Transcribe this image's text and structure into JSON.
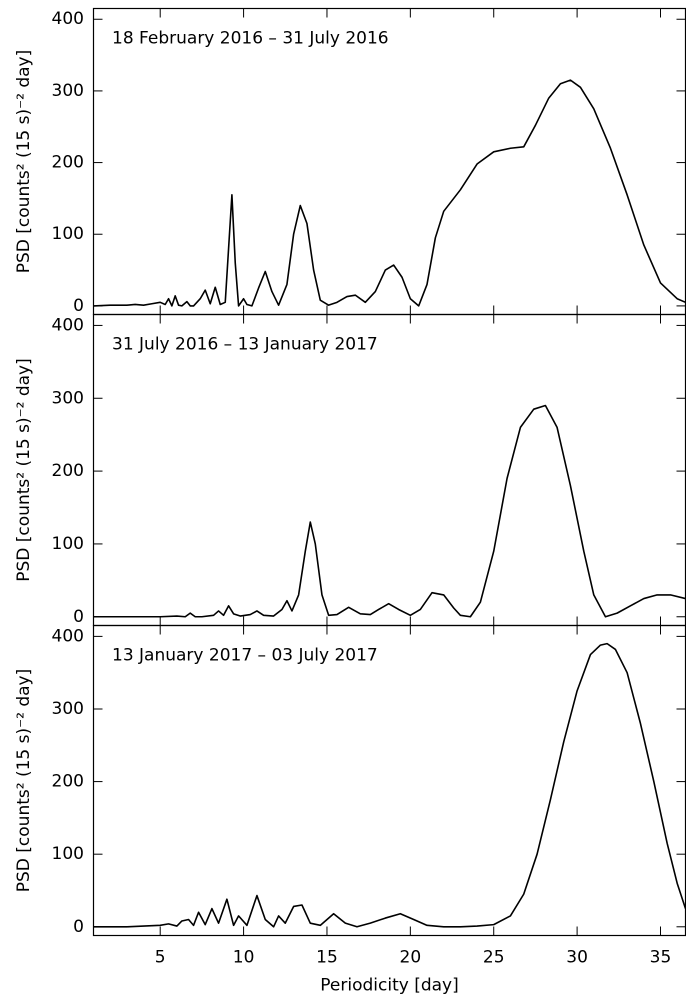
{
  "chart_data": [
    {
      "type": "line",
      "title": "18 February 2016 – 31 July 2016",
      "ylabel": "PSD [counts² (15 s)⁻² day]",
      "color": "#000000",
      "xlim": [
        1,
        36.5
      ],
      "ylim": [
        -12,
        415
      ],
      "yticks": [
        0,
        100,
        200,
        300,
        400
      ],
      "x": [
        1,
        2,
        3,
        3.5,
        4,
        4.5,
        5,
        5.3,
        5.5,
        5.7,
        5.9,
        6.1,
        6.3,
        6.6,
        6.8,
        7.0,
        7.4,
        7.7,
        8.0,
        8.3,
        8.6,
        8.9,
        9.1,
        9.3,
        9.5,
        9.7,
        10.0,
        10.2,
        10.5,
        10.9,
        11.3,
        11.7,
        12.1,
        12.6,
        13.0,
        13.4,
        13.8,
        14.2,
        14.6,
        15.1,
        15.6,
        16.2,
        16.7,
        17.3,
        17.9,
        18.5,
        19.0,
        19.5,
        20.0,
        20.5,
        21.0,
        21.5,
        22.0,
        23.0,
        24.0,
        25.0,
        26.0,
        26.8,
        27.5,
        28.3,
        29.0,
        29.6,
        30.2,
        31.0,
        32.0,
        33.0,
        34.0,
        35.0,
        36.0,
        36.5
      ],
      "values": [
        0,
        1,
        1,
        2,
        1,
        3,
        5,
        2,
        10,
        0,
        14,
        1,
        0,
        6,
        0,
        0,
        10,
        22,
        3,
        26,
        2,
        5,
        80,
        155,
        60,
        0,
        10,
        2,
        0,
        25,
        48,
        20,
        1,
        30,
        100,
        140,
        115,
        50,
        8,
        1,
        5,
        13,
        15,
        5,
        20,
        50,
        57,
        40,
        10,
        0,
        30,
        95,
        132,
        162,
        198,
        215,
        220,
        222,
        252,
        290,
        310,
        315,
        305,
        275,
        220,
        155,
        85,
        32,
        10,
        5
      ]
    },
    {
      "type": "line",
      "title": "31 July 2016 – 13 January 2017",
      "ylabel": "PSD [counts² (15 s)⁻² day]",
      "color": "#000000",
      "xlim": [
        1,
        36.5
      ],
      "ylim": [
        -12,
        415
      ],
      "yticks": [
        0,
        100,
        200,
        300,
        400
      ],
      "x": [
        1,
        3,
        5,
        6,
        6.5,
        6.8,
        7.1,
        7.5,
        8.2,
        8.5,
        8.8,
        9.1,
        9.4,
        9.8,
        10.4,
        10.8,
        11.2,
        11.8,
        12.3,
        12.6,
        12.9,
        13.3,
        13.7,
        14.0,
        14.3,
        14.7,
        15.1,
        15.6,
        16.3,
        17.0,
        17.6,
        18.1,
        18.7,
        19.3,
        20.0,
        20.6,
        21.3,
        22.0,
        22.6,
        23.0,
        23.6,
        24.2,
        25.0,
        25.8,
        26.6,
        27.4,
        28.1,
        28.8,
        29.6,
        30.4,
        31.0,
        31.7,
        32.4,
        33.2,
        34.0,
        34.8,
        35.6,
        36.5
      ],
      "values": [
        0,
        0,
        0,
        1,
        0,
        5,
        0,
        0,
        2,
        8,
        2,
        15,
        4,
        1,
        3,
        8,
        2,
        1,
        10,
        22,
        8,
        30,
        90,
        130,
        100,
        30,
        2,
        3,
        13,
        4,
        3,
        10,
        18,
        10,
        2,
        10,
        33,
        30,
        12,
        2,
        0,
        20,
        90,
        190,
        260,
        285,
        290,
        260,
        180,
        90,
        30,
        0,
        5,
        15,
        25,
        30,
        30,
        25
      ]
    },
    {
      "type": "line",
      "title": "13 January 2017 – 03 July 2017",
      "ylabel": "PSD [counts² (15 s)⁻² day]",
      "xlabel": "Periodicity [day]",
      "color": "#000000",
      "xlim": [
        1,
        36.5
      ],
      "ylim": [
        -12,
        415
      ],
      "yticks": [
        0,
        100,
        200,
        300,
        400
      ],
      "xticks": [
        5,
        10,
        15,
        20,
        25,
        30,
        35
      ],
      "x": [
        1,
        3,
        4,
        5,
        5.5,
        6.0,
        6.3,
        6.7,
        7.0,
        7.3,
        7.7,
        8.1,
        8.5,
        9.0,
        9.4,
        9.7,
        10.2,
        10.8,
        11.3,
        11.8,
        12.1,
        12.5,
        13.0,
        13.5,
        14.0,
        14.6,
        15.4,
        16.1,
        16.8,
        17.6,
        18.5,
        19.4,
        20.2,
        21.0,
        22.0,
        23.0,
        24.0,
        25.0,
        26.0,
        26.8,
        27.6,
        28.4,
        29.2,
        30.0,
        30.8,
        31.4,
        31.8,
        32.3,
        33.0,
        33.8,
        34.6,
        35.4,
        36.0,
        36.5
      ],
      "values": [
        0,
        0,
        1,
        2,
        4,
        1,
        8,
        10,
        2,
        20,
        3,
        25,
        5,
        38,
        2,
        15,
        2,
        43,
        10,
        0,
        15,
        5,
        28,
        30,
        5,
        2,
        18,
        5,
        0,
        5,
        12,
        18,
        10,
        2,
        0,
        0,
        1,
        3,
        15,
        45,
        100,
        175,
        255,
        325,
        375,
        388,
        390,
        382,
        350,
        280,
        200,
        115,
        60,
        25
      ]
    }
  ]
}
